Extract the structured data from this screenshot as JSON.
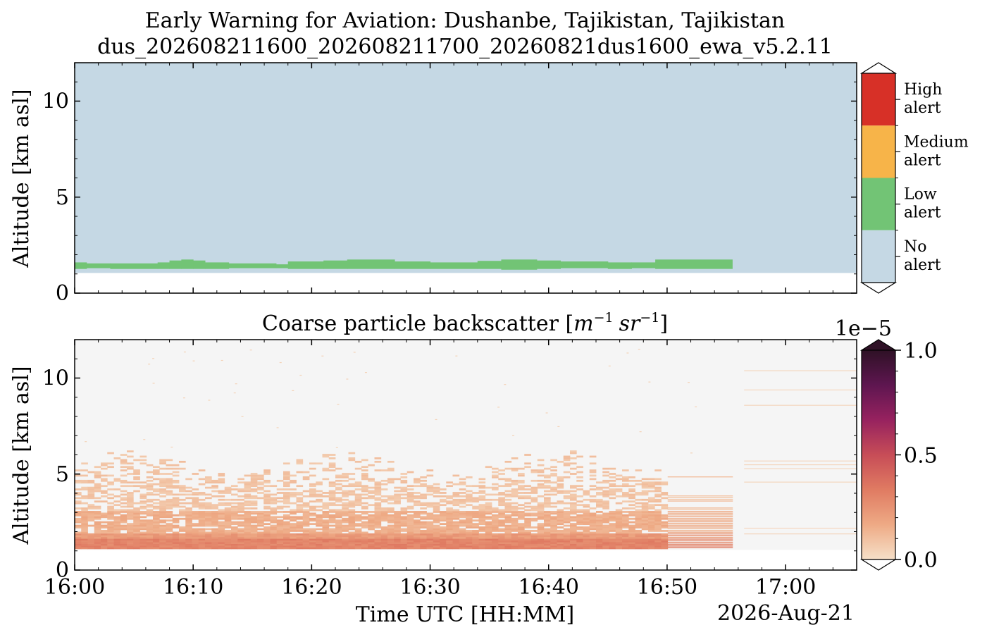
{
  "header": {
    "title_line1": "Early Warning for Aviation: Dushanbe, Tajikistan, Tajikistan",
    "title_line2": "dus_202608211600_202608211700_20260821dus1600_ewa_v5.2.11"
  },
  "chart_data": [
    {
      "type": "heatmap",
      "title": "",
      "ylabel": "Altitude [km asl]",
      "ylim": [
        0,
        12
      ],
      "yticks": [
        {
          "v": 0,
          "label": "0"
        },
        {
          "v": 5,
          "label": "5"
        },
        {
          "v": 10,
          "label": "10"
        }
      ],
      "xlim_minutes": [
        0,
        76
      ],
      "ground_km": 1.05,
      "no_alert_data_end_min": 76,
      "low_alert_segments": [
        {
          "t0": 0,
          "t1": 1,
          "bottom": 1.26,
          "top": 1.6
        },
        {
          "t0": 1,
          "t1": 3,
          "bottom": 1.3,
          "top": 1.55
        },
        {
          "t0": 3,
          "t1": 7,
          "bottom": 1.26,
          "top": 1.55
        },
        {
          "t0": 7,
          "t1": 8,
          "bottom": 1.26,
          "top": 1.6
        },
        {
          "t0": 8,
          "t1": 9,
          "bottom": 1.26,
          "top": 1.7
        },
        {
          "t0": 9,
          "t1": 10,
          "bottom": 1.26,
          "top": 1.75
        },
        {
          "t0": 10,
          "t1": 11,
          "bottom": 1.26,
          "top": 1.7
        },
        {
          "t0": 11,
          "t1": 13,
          "bottom": 1.26,
          "top": 1.6
        },
        {
          "t0": 13,
          "t1": 17,
          "bottom": 1.3,
          "top": 1.55
        },
        {
          "t0": 17,
          "t1": 18,
          "bottom": 1.3,
          "top": 1.5
        },
        {
          "t0": 18,
          "t1": 21,
          "bottom": 1.26,
          "top": 1.65
        },
        {
          "t0": 21,
          "t1": 23,
          "bottom": 1.26,
          "top": 1.7
        },
        {
          "t0": 23,
          "t1": 27,
          "bottom": 1.26,
          "top": 1.75
        },
        {
          "t0": 27,
          "t1": 30,
          "bottom": 1.26,
          "top": 1.65
        },
        {
          "t0": 30,
          "t1": 34,
          "bottom": 1.26,
          "top": 1.6
        },
        {
          "t0": 34,
          "t1": 36,
          "bottom": 1.26,
          "top": 1.68
        },
        {
          "t0": 36,
          "t1": 39,
          "bottom": 1.22,
          "top": 1.75
        },
        {
          "t0": 39,
          "t1": 41,
          "bottom": 1.26,
          "top": 1.7
        },
        {
          "t0": 41,
          "t1": 45,
          "bottom": 1.3,
          "top": 1.65
        },
        {
          "t0": 45,
          "t1": 47,
          "bottom": 1.26,
          "top": 1.6
        },
        {
          "t0": 47,
          "t1": 49,
          "bottom": 1.3,
          "top": 1.6
        },
        {
          "t0": 49,
          "t1": 55.5,
          "bottom": 1.26,
          "top": 1.75
        }
      ],
      "colorbar": {
        "categories": [
          {
            "label_line1": "High",
            "label_line2": "alert",
            "color": "#d73027"
          },
          {
            "label_line1": "Medium",
            "label_line2": "alert",
            "color": "#f7b449"
          },
          {
            "label_line1": "Low",
            "label_line2": "alert",
            "color": "#72c475"
          },
          {
            "label_line1": "No",
            "label_line2": "alert",
            "color": "#c5d8e4"
          }
        ]
      }
    },
    {
      "type": "heatmap",
      "title": "Coarse particle backscatter [m⁻¹ sr⁻¹]",
      "title_text": "Coarse particle backscatter [",
      "title_unit_m": "m",
      "title_unit_sr": "sr",
      "title_exp": "−1",
      "title_close": "]",
      "ylabel": "Altitude [km asl]",
      "xlabel": "Time UTC [HH:MM]",
      "date_label": "2026-Aug-21",
      "ylim": [
        0,
        12
      ],
      "yticks": [
        {
          "v": 0,
          "label": "0"
        },
        {
          "v": 5,
          "label": "5"
        },
        {
          "v": 10,
          "label": "10"
        }
      ],
      "xlim_minutes": [
        0,
        66
      ],
      "xticks": [
        {
          "m": 0,
          "label": "16:00"
        },
        {
          "m": 10,
          "label": "16:10"
        },
        {
          "m": 20,
          "label": "16:20"
        },
        {
          "m": 30,
          "label": "16:30"
        },
        {
          "m": 40,
          "label": "16:40"
        },
        {
          "m": 50,
          "label": "16:50"
        },
        {
          "m": 60,
          "label": "17:00"
        }
      ],
      "ground_km": 1.05,
      "data_end_min": 55.5,
      "background_color": "#f5f5f5",
      "colorbar": {
        "min": 0.0,
        "max": 1.0,
        "multiplier_label": "1e−5",
        "ticks": [
          {
            "v": 0.0,
            "label": "0.0"
          },
          {
            "v": 0.5,
            "label": "0.5"
          },
          {
            "v": 1.0,
            "label": "1.0"
          }
        ],
        "colormap": [
          "#f6e0c8",
          "#eeaa85",
          "#e07b62",
          "#c74d57",
          "#97225f",
          "#5e1650",
          "#2f1126"
        ]
      }
    }
  ]
}
